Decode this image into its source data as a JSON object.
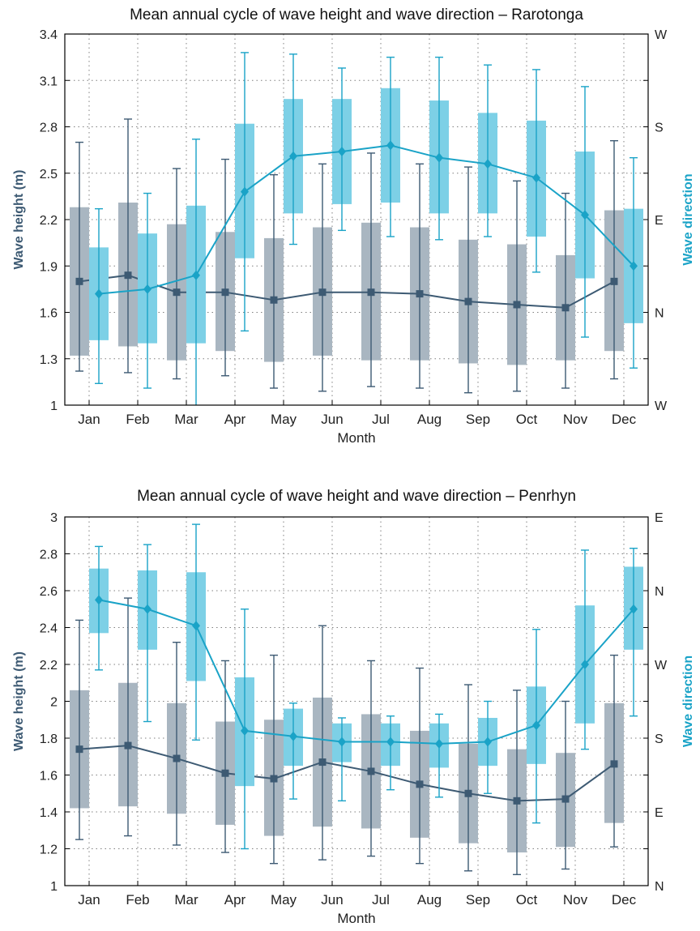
{
  "colors": {
    "height": "#3d5a73",
    "height_box": "#a9b6c1",
    "direction": "#1aa3c7",
    "direction_box": "#7dd0e6",
    "grid": "#7f7f7f",
    "axis": "#000000"
  },
  "chart_data": [
    {
      "type": "box",
      "title": "Mean annual cycle of wave height and wave direction – Rarotonga",
      "xlabel": "Month",
      "ylabel": "Wave height (m)",
      "y2label": "Wave direction",
      "categories": [
        "Jan",
        "Feb",
        "Mar",
        "Apr",
        "May",
        "Jun",
        "Jul",
        "Aug",
        "Sep",
        "Oct",
        "Nov",
        "Dec"
      ],
      "ylim": [
        1,
        3.4
      ],
      "yticks": [
        "1",
        "1.3",
        "1.6",
        "1.9",
        "2.2",
        "2.5",
        "2.8",
        "3.1",
        "3.4"
      ],
      "y2_ticks": [
        "W",
        "N",
        "E",
        "S",
        "W"
      ],
      "grid": true,
      "series": [
        {
          "name": "Wave height",
          "mean": [
            1.8,
            1.84,
            1.73,
            1.73,
            1.68,
            1.73,
            1.73,
            1.72,
            1.67,
            1.65,
            1.63,
            1.8
          ],
          "box_low": [
            1.32,
            1.38,
            1.29,
            1.35,
            1.28,
            1.32,
            1.29,
            1.29,
            1.27,
            1.26,
            1.29,
            1.35
          ],
          "box_high": [
            2.28,
            2.31,
            2.17,
            2.12,
            2.08,
            2.15,
            2.18,
            2.15,
            2.07,
            2.04,
            1.97,
            2.26
          ],
          "whisker_low": [
            1.22,
            1.21,
            1.17,
            1.19,
            1.11,
            1.09,
            1.12,
            1.11,
            1.08,
            1.09,
            1.11,
            1.17
          ],
          "whisker_high": [
            2.7,
            2.85,
            2.53,
            2.59,
            2.49,
            2.56,
            2.63,
            2.56,
            2.54,
            2.45,
            2.37,
            2.71
          ]
        },
        {
          "name": "Wave direction",
          "mean": [
            1.72,
            1.75,
            1.84,
            2.38,
            2.61,
            2.64,
            2.68,
            2.6,
            2.56,
            2.47,
            2.23,
            1.9
          ],
          "box_low": [
            1.42,
            1.4,
            1.4,
            1.95,
            2.24,
            2.3,
            2.31,
            2.24,
            2.24,
            2.09,
            1.82,
            1.53
          ],
          "box_high": [
            2.02,
            2.11,
            2.29,
            2.82,
            2.98,
            2.98,
            3.05,
            2.97,
            2.89,
            2.84,
            2.64,
            2.27
          ],
          "whisker_low": [
            1.14,
            1.11,
            1.0,
            1.48,
            2.04,
            2.13,
            2.09,
            2.07,
            2.09,
            1.86,
            1.44,
            1.24
          ],
          "whisker_high": [
            2.27,
            2.37,
            2.72,
            3.28,
            3.27,
            3.18,
            3.25,
            3.25,
            3.2,
            3.17,
            3.06,
            2.6
          ]
        }
      ]
    },
    {
      "type": "box",
      "title": "Mean annual cycle of wave height and wave direction – Penrhyn",
      "xlabel": "Month",
      "ylabel": "Wave height (m)",
      "y2label": "Wave direction",
      "categories": [
        "Jan",
        "Feb",
        "Mar",
        "Apr",
        "May",
        "Jun",
        "Jul",
        "Aug",
        "Sep",
        "Oct",
        "Nov",
        "Dec"
      ],
      "ylim": [
        1,
        3
      ],
      "yticks": [
        "1",
        "1.2",
        "1.4",
        "1.6",
        "1.8",
        "2",
        "2.2",
        "2.4",
        "2.6",
        "2.8",
        "3"
      ],
      "y2_ticks": [
        "N",
        "E",
        "S",
        "W",
        "N",
        "E"
      ],
      "grid": true,
      "series": [
        {
          "name": "Wave height",
          "mean": [
            1.74,
            1.76,
            1.69,
            1.61,
            1.58,
            1.67,
            1.62,
            1.55,
            1.5,
            1.46,
            1.47,
            1.66
          ],
          "box_low": [
            1.42,
            1.43,
            1.39,
            1.33,
            1.27,
            1.32,
            1.31,
            1.26,
            1.23,
            1.18,
            1.21,
            1.34
          ],
          "box_high": [
            2.06,
            2.1,
            1.99,
            1.89,
            1.9,
            2.02,
            1.93,
            1.84,
            1.77,
            1.74,
            1.72,
            1.99
          ],
          "whisker_low": [
            1.25,
            1.27,
            1.22,
            1.18,
            1.12,
            1.14,
            1.16,
            1.12,
            1.08,
            1.06,
            1.09,
            1.21
          ],
          "whisker_high": [
            2.44,
            2.56,
            2.32,
            2.22,
            2.25,
            2.41,
            2.22,
            2.18,
            2.09,
            2.06,
            2.0,
            2.25
          ]
        },
        {
          "name": "Wave direction",
          "mean": [
            2.55,
            2.5,
            2.41,
            1.84,
            1.81,
            1.78,
            1.78,
            1.77,
            1.78,
            1.87,
            2.2,
            2.5
          ],
          "box_low": [
            2.37,
            2.28,
            2.11,
            1.54,
            1.65,
            1.67,
            1.65,
            1.64,
            1.65,
            1.66,
            1.88,
            2.28
          ],
          "box_high": [
            2.72,
            2.71,
            2.7,
            2.13,
            1.96,
            1.88,
            1.88,
            1.88,
            1.91,
            2.08,
            2.52,
            2.73
          ],
          "whisker_low": [
            2.17,
            1.89,
            1.79,
            1.2,
            1.47,
            1.46,
            1.52,
            1.48,
            1.5,
            1.34,
            1.74,
            1.92
          ],
          "whisker_high": [
            2.84,
            2.85,
            2.96,
            2.5,
            1.99,
            1.91,
            1.92,
            1.93,
            2.0,
            2.39,
            2.82,
            2.83
          ]
        }
      ]
    }
  ]
}
